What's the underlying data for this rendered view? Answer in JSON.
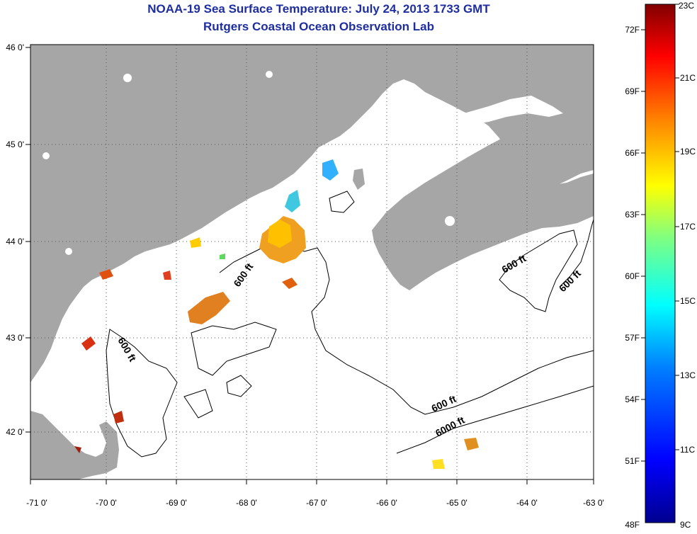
{
  "title": "NOAA-19 Sea Surface Temperature:  July 24, 2013 1733 GMT",
  "subtitle": "Rutgers Coastal Ocean Observation Lab",
  "lon_ticks": [
    "-71 0'",
    "-70 0'",
    "-69 0'",
    "-68 0'",
    "-67 0'",
    "-66 0'",
    "-65 0'",
    "-64 0'",
    "-63 0'"
  ],
  "lat_ticks": [
    "46 0'",
    "45 0'",
    "44 0'",
    "43 0'",
    "42 0'"
  ],
  "contour_labels": [
    "600 ft",
    "600 ft",
    "600 ft",
    "600 ft",
    "600 ft",
    "6000 ft"
  ],
  "colorbar": {
    "fahrenheit": [
      "72F",
      "69F",
      "66F",
      "63F",
      "60F",
      "57F",
      "54F",
      "51F",
      "48F"
    ],
    "celsius": [
      "23C",
      "21C",
      "19C",
      "17C",
      "15C",
      "13C",
      "11C",
      "9C"
    ]
  },
  "colors": {
    "land": "#a6a6a6",
    "title": "#1e2ea0",
    "grid": "#555555"
  }
}
